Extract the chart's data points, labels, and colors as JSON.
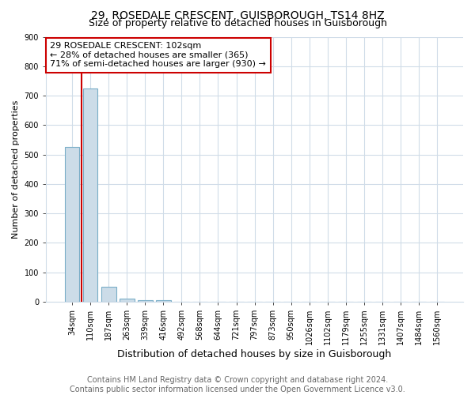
{
  "title": "29, ROSEDALE CRESCENT, GUISBOROUGH, TS14 8HZ",
  "subtitle": "Size of property relative to detached houses in Guisborough",
  "xlabel": "Distribution of detached houses by size in Guisborough",
  "ylabel": "Number of detached properties",
  "footer_line1": "Contains HM Land Registry data © Crown copyright and database right 2024.",
  "footer_line2": "Contains public sector information licensed under the Open Government Licence v3.0.",
  "categories": [
    "34sqm",
    "110sqm",
    "187sqm",
    "263sqm",
    "339sqm",
    "416sqm",
    "492sqm",
    "568sqm",
    "644sqm",
    "721sqm",
    "797sqm",
    "873sqm",
    "950sqm",
    "1026sqm",
    "1102sqm",
    "1179sqm",
    "1255sqm",
    "1331sqm",
    "1407sqm",
    "1484sqm",
    "1560sqm"
  ],
  "values": [
    525,
    725,
    50,
    10,
    5,
    5,
    0,
    0,
    0,
    0,
    0,
    0,
    0,
    0,
    0,
    0,
    0,
    0,
    0,
    0,
    0
  ],
  "bar_color": "#ccdce8",
  "bar_edge_color": "#7aaec8",
  "property_line_x": 0.5,
  "property_line_color": "#cc0000",
  "annotation_text": "29 ROSEDALE CRESCENT: 102sqm\n← 28% of detached houses are smaller (365)\n71% of semi-detached houses are larger (930) →",
  "annotation_box_edgecolor": "#cc0000",
  "annotation_bg_color": "#ffffff",
  "ylim": [
    0,
    900
  ],
  "yticks": [
    0,
    100,
    200,
    300,
    400,
    500,
    600,
    700,
    800,
    900
  ],
  "grid_color": "#d0dce8",
  "background_color": "#ffffff",
  "title_fontsize": 10,
  "subtitle_fontsize": 9,
  "xlabel_fontsize": 9,
  "ylabel_fontsize": 8,
  "tick_fontsize": 7,
  "annotation_fontsize": 8,
  "footer_fontsize": 7
}
